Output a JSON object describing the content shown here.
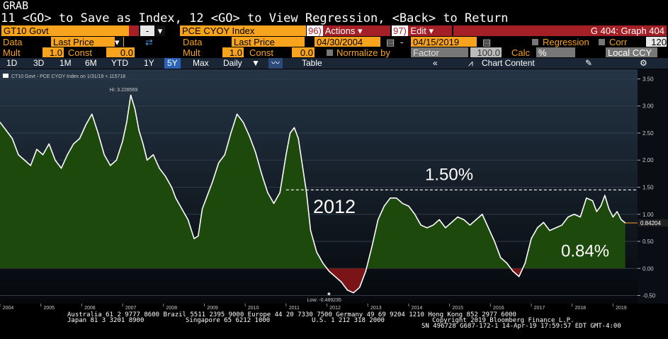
{
  "header": {
    "grab": "GRAB",
    "instructions": "11 <GO> to Save as Index, 12 <GO> to View Regression, <Back> to Return"
  },
  "row1": {
    "security1": "GT10 Govt",
    "security1_menu": "-",
    "security2": "PCE CYOY Index",
    "actions_num": "96)",
    "actions": "Actions",
    "edit_num": "97)",
    "edit": "Edit",
    "graph_title": "G 404: Graph 404"
  },
  "row2": {
    "data_label1": "Data",
    "data_value1": "Last Price",
    "data_label2": "Data",
    "data_value2": "Last Price",
    "start_date": "04/30/2004",
    "dash": "-",
    "end_date": "04/15/2019",
    "regression": "Regression",
    "corr": "Corr",
    "corr_value": "120"
  },
  "row3": {
    "mult_label1": "Mult",
    "mult_value1": "1.0",
    "const_label1": "Const",
    "const_value1": "0.0",
    "mult_label2": "Mult",
    "mult_value2": "1.0",
    "const_label2": "Const",
    "const_value2": "0.0",
    "normalize": "Normalize by",
    "factor": "Factor",
    "factor_value": "100.0",
    "calc": "Calc",
    "calc_value": "%",
    "currency": "Local CCY"
  },
  "toolbar": {
    "ranges": [
      "1D",
      "3D",
      "1M",
      "6M",
      "YTD",
      "1Y",
      "5Y",
      "Max"
    ],
    "selected_range": "5Y",
    "period": "Daily",
    "table": "Table",
    "chart_content": "Chart Content"
  },
  "colors": {
    "orange": "#f7a31e",
    "fill_green": "#1d4a0c",
    "fill_red": "#7a1416",
    "line": "#ffffff",
    "select_blue": "#2b64b6"
  },
  "chart_data": {
    "type": "area",
    "legend": "CT10 Govt - PCE CYOY Index on 1/31/19 +.115718",
    "x_tick_labels": [
      "2004",
      "2005",
      "2006",
      "2007",
      "2008",
      "2009",
      "2010",
      "2011",
      "2012",
      "2013",
      "2014",
      "2015",
      "2016",
      "2017",
      "2018",
      "2019"
    ],
    "y_ticks": [
      -0.5,
      0.0,
      0.5,
      1.0,
      1.5,
      2.0,
      2.5,
      3.0,
      3.5
    ],
    "ylim": [
      -0.65,
      3.65
    ],
    "xlim": [
      2004.0,
      2019.6
    ],
    "hi_label": "Hi: 3.228569",
    "low_label": "Low: -0.489235",
    "last_value_label": "0.84204",
    "reference_value": 1.45,
    "annotations": {
      "ref": "1.50%",
      "year": "2012",
      "last": "0.84%"
    },
    "series": [
      {
        "x": [
          2004.0,
          2004.15,
          2004.3,
          2004.45,
          2004.6,
          2004.75,
          2004.9,
          2005.05,
          2005.2,
          2005.35,
          2005.5,
          2005.65,
          2005.8,
          2005.95,
          2006.1,
          2006.25,
          2006.4,
          2006.55,
          2006.7,
          2006.85,
          2007.0,
          2007.1,
          2007.2,
          2007.3,
          2007.4,
          2007.5,
          2007.6,
          2007.75,
          2007.9,
          2008.05,
          2008.2,
          2008.3,
          2008.45,
          2008.6,
          2008.75,
          2008.85,
          2008.95,
          2009.05,
          2009.2,
          2009.35,
          2009.5,
          2009.65,
          2009.8,
          2009.95,
          2010.1,
          2010.25,
          2010.4,
          2010.55,
          2010.7,
          2010.85,
          2011.0,
          2011.1,
          2011.2,
          2011.3,
          2011.4,
          2011.5,
          2011.6,
          2011.75,
          2011.9,
          2012.05,
          2012.2,
          2012.35,
          2012.5,
          2012.65,
          2012.8,
          2012.95,
          2013.1,
          2013.25,
          2013.4,
          2013.55,
          2013.7,
          2013.85,
          2014.0,
          2014.15,
          2014.3,
          2014.45,
          2014.6,
          2014.75,
          2014.9,
          2015.05,
          2015.2,
          2015.35,
          2015.5,
          2015.65,
          2015.8,
          2015.95,
          2016.1,
          2016.25,
          2016.4,
          2016.55,
          2016.7,
          2016.85,
          2017.0,
          2017.15,
          2017.3,
          2017.45,
          2017.6,
          2017.75,
          2017.9,
          2018.05,
          2018.2,
          2018.35,
          2018.5,
          2018.6,
          2018.7,
          2018.8,
          2018.9,
          2019.0,
          2019.1,
          2019.2,
          2019.3
        ],
        "y": [
          2.7,
          2.55,
          2.4,
          2.1,
          2.0,
          1.9,
          2.2,
          2.1,
          2.3,
          2.0,
          1.85,
          2.1,
          2.3,
          2.4,
          2.65,
          2.85,
          2.5,
          2.1,
          1.9,
          2.0,
          2.35,
          2.7,
          3.2,
          2.95,
          2.55,
          2.3,
          2.0,
          2.1,
          1.85,
          1.7,
          1.5,
          1.3,
          1.1,
          0.9,
          0.55,
          0.6,
          1.1,
          1.3,
          1.6,
          1.95,
          2.1,
          2.5,
          2.85,
          2.7,
          2.45,
          2.15,
          1.75,
          1.4,
          1.2,
          1.4,
          2.1,
          2.5,
          2.6,
          2.4,
          1.9,
          1.4,
          0.7,
          0.3,
          0.1,
          -0.05,
          -0.15,
          -0.25,
          -0.4,
          -0.45,
          -0.35,
          -0.05,
          0.4,
          0.9,
          1.15,
          1.3,
          1.3,
          1.2,
          1.15,
          1.0,
          0.8,
          0.75,
          0.8,
          0.9,
          0.75,
          0.85,
          0.95,
          0.9,
          0.8,
          0.9,
          1.0,
          0.75,
          0.5,
          0.2,
          0.1,
          -0.05,
          -0.15,
          0.1,
          0.55,
          0.75,
          0.85,
          0.7,
          0.75,
          0.8,
          0.95,
          1.0,
          0.95,
          1.3,
          1.25,
          1.05,
          1.15,
          1.35,
          1.1,
          0.95,
          1.05,
          0.9,
          0.84
        ]
      }
    ]
  },
  "footer": {
    "line1": "Australia 61 2 9777 8600 Brazil 5511 2395 9000 Europe 44 20 7330 7500 Germany 49 69 9204 1210 Hong Kong 852 2977 6000",
    "line2_left": "Japan 81 3 3201 8900",
    "line2_mid1": "Singapore 65 6212 1000",
    "line2_mid2": "U.S. 1 212 318 2000",
    "line2_right": "Copyright 2019 Bloomberg Finance L.P.",
    "line3": "SN 496728 G687-172-1 14-Apr-19 17:59:57 EDT  GMT-4:00"
  }
}
